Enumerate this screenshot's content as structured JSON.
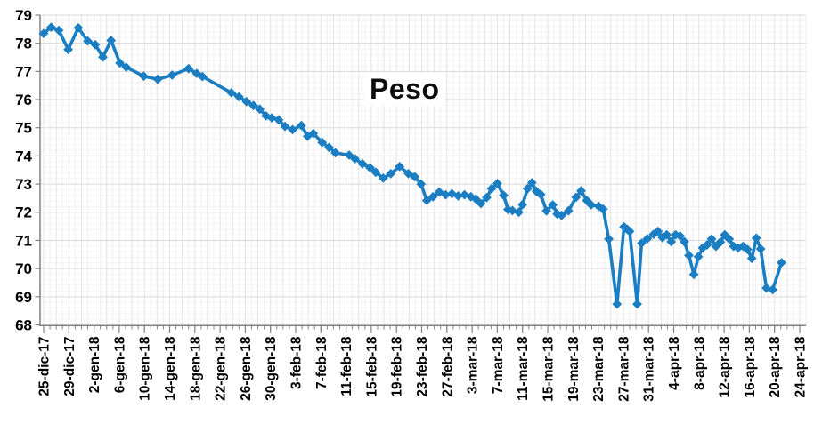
{
  "chart_data": {
    "type": "line",
    "title": "Peso",
    "legend": "none",
    "x_axis": {
      "tick_labels": [
        "25-dic-17",
        "29-dic-17",
        "2-gen-18",
        "6-gen-18",
        "10-gen-18",
        "14-gen-18",
        "18-gen-18",
        "22-gen-18",
        "26-gen-18",
        "30-gen-18",
        "3-feb-18",
        "7-feb-18",
        "11-feb-18",
        "15-feb-18",
        "19-feb-18",
        "23-feb-18",
        "27-feb-18",
        "3-mar-18",
        "7-mar-18",
        "11-mar-18",
        "15-mar-18",
        "19-mar-18",
        "23-mar-18",
        "27-mar-18",
        "31-mar-18",
        "4-apr-18",
        "8-apr-18",
        "12-apr-18",
        "16-apr-18",
        "20-apr-18",
        "24-apr-18"
      ],
      "tick_interval_days": 4,
      "range_days": [
        0,
        121
      ]
    },
    "y_axis": {
      "tick_labels": [
        "79",
        "78",
        "77",
        "76",
        "75",
        "74",
        "73",
        "72",
        "71",
        "70",
        "69",
        "68"
      ],
      "min": 68,
      "max": 79,
      "tick_step": 1
    },
    "grid": {
      "vertical_daily": true,
      "horizontal_major_step": 1,
      "horizontal_minor_step": 0.2
    },
    "series": [
      {
        "name": "Peso",
        "marker": "diamond",
        "color": "#1B7EC2",
        "points": [
          [
            0,
            78.35
          ],
          [
            1.2,
            78.57
          ],
          [
            2.4,
            78.46
          ],
          [
            3.9,
            77.78
          ],
          [
            5.5,
            78.55
          ],
          [
            7,
            78.08
          ],
          [
            8.2,
            77.95
          ],
          [
            9.4,
            77.51
          ],
          [
            10.7,
            78.1
          ],
          [
            12.1,
            77.3
          ],
          [
            13.1,
            77.15
          ],
          [
            15.9,
            76.83
          ],
          [
            18.1,
            76.72
          ],
          [
            20.4,
            76.87
          ],
          [
            23,
            77.1
          ],
          [
            24.3,
            76.93
          ],
          [
            25.2,
            76.82
          ],
          [
            29.8,
            76.24
          ],
          [
            31,
            76.1
          ],
          [
            32.2,
            75.93
          ],
          [
            33.3,
            75.79
          ],
          [
            34.3,
            75.66
          ],
          [
            35.3,
            75.42
          ],
          [
            36.2,
            75.35
          ],
          [
            37.3,
            75.28
          ],
          [
            38.3,
            75.05
          ],
          [
            39.5,
            74.93
          ],
          [
            40.9,
            75.08
          ],
          [
            41.9,
            74.7
          ],
          [
            42.8,
            74.8
          ],
          [
            44.2,
            74.48
          ],
          [
            45.3,
            74.3
          ],
          [
            46.3,
            74.11
          ],
          [
            48.5,
            74.03
          ],
          [
            49.4,
            73.9
          ],
          [
            50.6,
            73.72
          ],
          [
            51.8,
            73.58
          ],
          [
            52.7,
            73.42
          ],
          [
            53.9,
            73.21
          ],
          [
            55.1,
            73.37
          ],
          [
            56.5,
            73.62
          ],
          [
            57.9,
            73.37
          ],
          [
            58.9,
            73.26
          ],
          [
            59.9,
            73.0
          ],
          [
            60.8,
            72.42
          ],
          [
            61.8,
            72.55
          ],
          [
            62.8,
            72.72
          ],
          [
            63.8,
            72.62
          ],
          [
            64.8,
            72.66
          ],
          [
            65.8,
            72.58
          ],
          [
            66.8,
            72.62
          ],
          [
            67.8,
            72.55
          ],
          [
            68.6,
            72.47
          ],
          [
            69.4,
            72.31
          ],
          [
            70.3,
            72.52
          ],
          [
            71.1,
            72.84
          ],
          [
            72,
            73.02
          ],
          [
            73,
            72.6
          ],
          [
            73.7,
            72.1
          ],
          [
            74.4,
            72.06
          ],
          [
            75.4,
            72.0
          ],
          [
            76,
            72.27
          ],
          [
            76.8,
            72.84
          ],
          [
            77.5,
            73.05
          ],
          [
            78.2,
            72.74
          ],
          [
            78.9,
            72.63
          ],
          [
            79.8,
            72.05
          ],
          [
            80.8,
            72.26
          ],
          [
            81.5,
            71.94
          ],
          [
            82.2,
            71.89
          ],
          [
            83.3,
            72.05
          ],
          [
            84.5,
            72.53
          ],
          [
            85.3,
            72.76
          ],
          [
            86.2,
            72.42
          ],
          [
            86.9,
            72.26
          ],
          [
            88.1,
            72.21
          ],
          [
            88.8,
            72.11
          ],
          [
            89.7,
            71.05
          ],
          [
            91,
            68.74
          ],
          [
            92.1,
            71.48
          ],
          [
            92.6,
            71.4
          ],
          [
            93,
            71.32
          ],
          [
            94.2,
            68.74
          ],
          [
            94.9,
            70.9
          ],
          [
            95.8,
            71.06
          ],
          [
            96.8,
            71.22
          ],
          [
            97.5,
            71.32
          ],
          [
            98.2,
            71.1
          ],
          [
            98.9,
            71.2
          ],
          [
            99.6,
            70.95
          ],
          [
            100.3,
            71.2
          ],
          [
            101,
            71.16
          ],
          [
            101.7,
            70.95
          ],
          [
            102.4,
            70.47
          ],
          [
            103.2,
            69.79
          ],
          [
            103.9,
            70.42
          ],
          [
            104.6,
            70.73
          ],
          [
            105.3,
            70.84
          ],
          [
            106,
            71.05
          ],
          [
            106.7,
            70.79
          ],
          [
            107.4,
            70.94
          ],
          [
            108.1,
            71.2
          ],
          [
            108.8,
            71.05
          ],
          [
            109.5,
            70.79
          ],
          [
            110.2,
            70.73
          ],
          [
            111,
            70.79
          ],
          [
            111.7,
            70.68
          ],
          [
            112.4,
            70.36
          ],
          [
            113.1,
            71.08
          ],
          [
            113.8,
            70.7
          ],
          [
            114.7,
            69.31
          ],
          [
            115.7,
            69.25
          ],
          [
            117.1,
            70.21
          ]
        ]
      }
    ],
    "colors": {
      "line": "#1B7EC2",
      "grid_major_h": "#D9D9D9",
      "grid_minor_h": "#F5F5F5",
      "grid_day": "#F0F0F0",
      "grid_day_alt": "#E4E4E4",
      "axis": "#808080",
      "label_text": "#000000",
      "background": "#FFFFFF"
    }
  }
}
